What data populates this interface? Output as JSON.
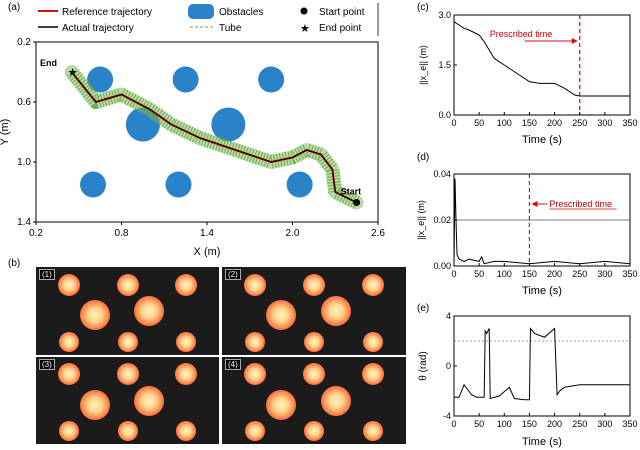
{
  "panels": {
    "a": {
      "letter": "(a)",
      "legend": {
        "reference": "Reference trajectory",
        "actual": "Actual trajectory",
        "obstacles": "Obstacles",
        "tube": "Tube",
        "start_point": "Start point",
        "end_point": "End point"
      },
      "end_label": "End",
      "start_label": "Start",
      "xlabel": "X (m)",
      "ylabel": "Y (m)",
      "xticks": [
        "0.2",
        "0.8",
        "1.4",
        "2.0",
        "2.6"
      ],
      "yticks": [
        "0.2",
        "0.6",
        "1.0",
        "1.4"
      ]
    },
    "b": {
      "letter": "(b)",
      "frames": [
        "(1)",
        "(2)",
        "(3)",
        "(4)"
      ]
    },
    "c": {
      "letter": "(c)",
      "annotation": "Prescribed time",
      "xlabel": "Time (s)",
      "ylabel": "||x_e|| (m)",
      "xticks": [
        "0",
        "50",
        "100",
        "150",
        "200",
        "250",
        "300",
        "350"
      ],
      "yticks": [
        "0.0",
        "1.5",
        "3.0"
      ]
    },
    "d": {
      "letter": "(d)",
      "annotation": "Prescribed time",
      "xlabel": "Time (s)",
      "ylabel": "||x_e|| (m)",
      "xticks": [
        "0",
        "50",
        "100",
        "150",
        "200",
        "250",
        "300",
        "350"
      ],
      "yticks": [
        "0.00",
        "0.02",
        "0.04"
      ]
    },
    "e": {
      "letter": "(e)",
      "xlabel": "Time (s)",
      "ylabel": "θ (rad)",
      "xticks": [
        "0",
        "50",
        "100",
        "150",
        "200",
        "250",
        "300",
        "350"
      ],
      "yticks": [
        "-4",
        "0",
        "4"
      ]
    }
  },
  "chart_data": [
    {
      "type": "line",
      "panel": "a",
      "xlim": [
        0.2,
        2.6
      ],
      "ylim": [
        1.4,
        0.2
      ],
      "obstacles": [
        [
          0.65,
          0.45
        ],
        [
          1.25,
          0.45
        ],
        [
          1.85,
          0.45
        ],
        [
          0.95,
          0.75
        ],
        [
          1.55,
          0.75
        ],
        [
          0.6,
          1.15
        ],
        [
          1.2,
          1.15
        ],
        [
          2.05,
          1.15
        ]
      ],
      "series": [
        {
          "name": "Reference trajectory",
          "x": [
            2.45,
            2.3,
            2.28,
            2.2,
            2.1,
            2.0,
            1.85,
            1.6,
            1.35,
            1.15,
            1.0,
            0.8,
            0.62,
            0.45
          ],
          "y": [
            1.27,
            1.2,
            1.05,
            0.95,
            0.92,
            0.97,
            1.0,
            0.92,
            0.84,
            0.75,
            0.65,
            0.55,
            0.6,
            0.4
          ]
        }
      ]
    },
    {
      "type": "line",
      "panel": "c",
      "xlim": [
        0,
        350
      ],
      "ylim": [
        0,
        3.0
      ],
      "prescribed_time": 250,
      "series": [
        {
          "x": [
            0,
            10,
            20,
            30,
            50,
            60,
            80,
            100,
            130,
            150,
            170,
            200,
            220,
            240,
            250,
            300,
            350
          ],
          "y": [
            2.8,
            2.7,
            2.6,
            2.55,
            2.4,
            2.2,
            1.7,
            1.5,
            1.2,
            1.0,
            0.95,
            0.95,
            0.8,
            0.6,
            0.57,
            0.57,
            0.57
          ]
        }
      ]
    },
    {
      "type": "line",
      "panel": "d",
      "xlim": [
        0,
        350
      ],
      "ylim": [
        0,
        0.04
      ],
      "prescribed_time": 150,
      "threshold": 0.02,
      "series": [
        {
          "x": [
            0,
            2,
            4,
            6,
            10,
            20,
            30,
            50,
            55,
            60,
            80,
            100,
            150,
            200,
            250,
            300,
            350
          ],
          "y": [
            0.0,
            0.038,
            0.02,
            0.005,
            0.003,
            0.002,
            0.003,
            0.002,
            0.004,
            0.001,
            0.002,
            0.002,
            0.001,
            0.002,
            0.001,
            0.002,
            0.001
          ]
        }
      ]
    },
    {
      "type": "line",
      "panel": "e",
      "xlim": [
        0,
        350
      ],
      "ylim": [
        -4,
        4
      ],
      "reference_line": 2,
      "series": [
        {
          "x": [
            0,
            10,
            20,
            35,
            45,
            55,
            60,
            62,
            65,
            70,
            72,
            90,
            110,
            120,
            140,
            150,
            152,
            160,
            180,
            200,
            205,
            210,
            220,
            250,
            300,
            350
          ],
          "y": [
            -2.5,
            -2.5,
            -1.5,
            -2.3,
            -2.5,
            -2.5,
            -2.5,
            2.8,
            2.6,
            3.0,
            -2.6,
            -2.4,
            -1.7,
            -2.6,
            -2.7,
            -2.7,
            3.0,
            2.6,
            2.3,
            3.0,
            -2.3,
            -2.0,
            -1.7,
            -1.5,
            -1.5,
            -1.5
          ]
        }
      ]
    }
  ]
}
